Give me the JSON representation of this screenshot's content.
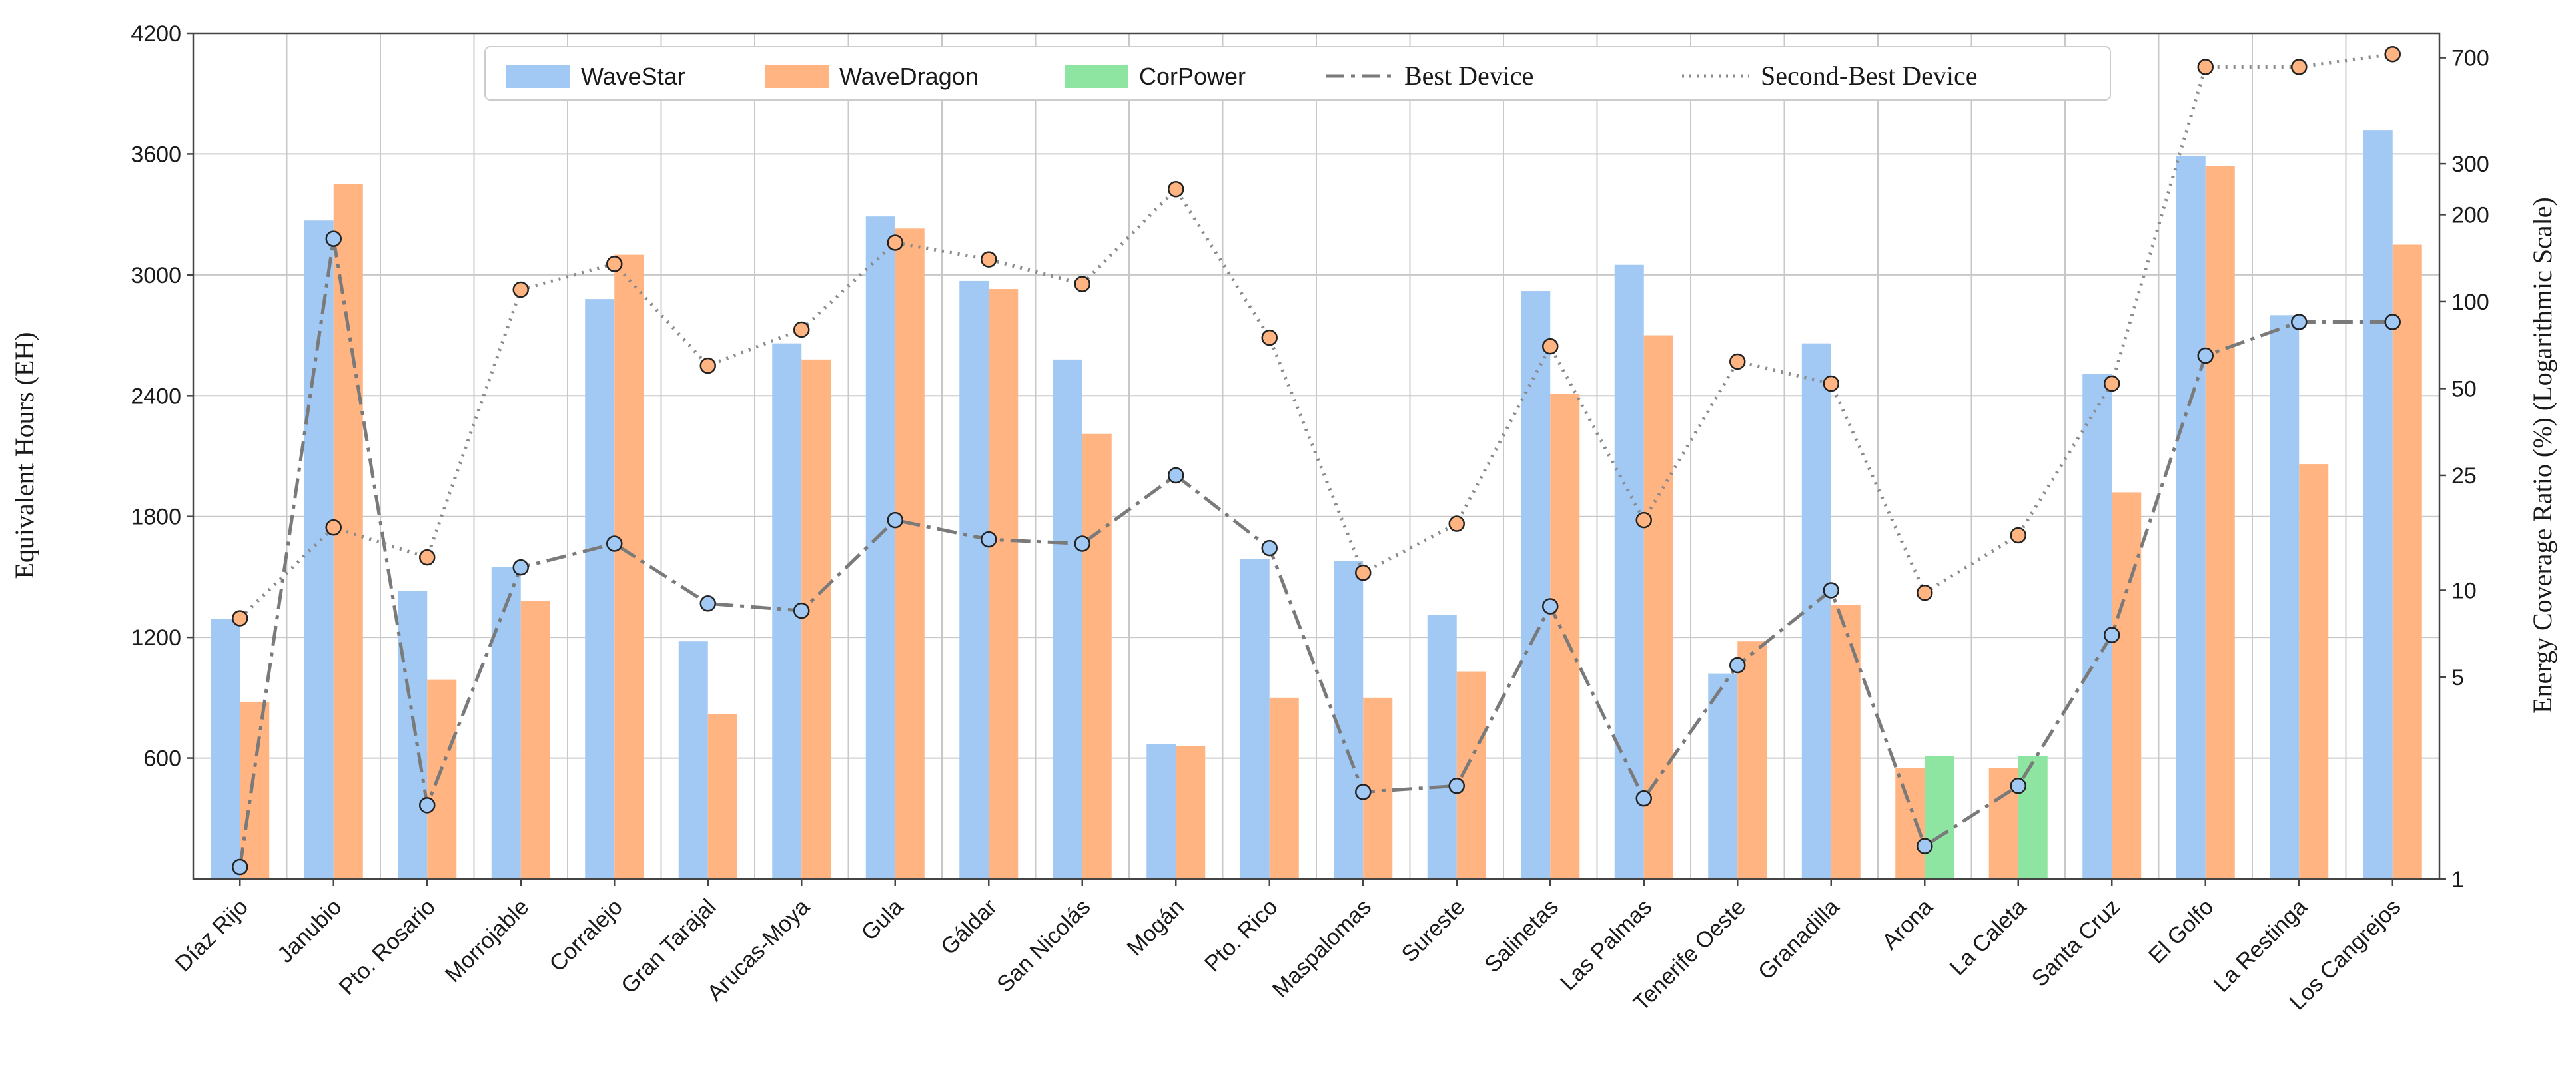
{
  "chart_data": {
    "type": "bar",
    "ylabel": "Equivalent Hours (EH)",
    "y2label": "Energy Coverage Ratio (%) (Logarithmic Scale)",
    "ylim": [
      0,
      4200
    ],
    "yticks": [
      600,
      1200,
      1800,
      2400,
      3000,
      3600,
      4200
    ],
    "y2lim": [
      1,
      850
    ],
    "y2scale": "log",
    "y2ticks": [
      1,
      5,
      10,
      25,
      50,
      100,
      200,
      300,
      700
    ],
    "grid": true,
    "legend_position": "top-center",
    "categories": [
      "Díaz Rijo",
      "Janubio",
      "Pto. Rosario",
      "Morrojable",
      "Corralejo",
      "Gran Tarajal",
      "Arucas-Moya",
      "Gula",
      "Gáldar",
      "San Nicolás",
      "Mogán",
      "Pto. Rico",
      "Maspalomas",
      "Sureste",
      "Salinetas",
      "Las Palmas",
      "Tenerife Oeste",
      "Granadilla",
      "Arona",
      "La Caleta",
      "Santa Cruz",
      "El Golfo",
      "La Restinga",
      "Los Cangrejos"
    ],
    "series": [
      {
        "name": "WaveStar",
        "kind": "bar",
        "color": "#a1c9f4",
        "values": [
          1290,
          3270,
          1430,
          1550,
          2880,
          1180,
          2660,
          3290,
          2970,
          2580,
          670,
          1590,
          1580,
          1310,
          2920,
          3050,
          1020,
          2660,
          0,
          0,
          2510,
          3590,
          2800,
          3720
        ]
      },
      {
        "name": "WaveDragon",
        "kind": "bar",
        "color": "#ffb482",
        "values": [
          880,
          3450,
          990,
          1380,
          3100,
          820,
          2580,
          3230,
          2930,
          2210,
          660,
          900,
          900,
          1030,
          2410,
          2700,
          1180,
          1360,
          550,
          550,
          1920,
          3540,
          2060,
          3150
        ]
      },
      {
        "name": "CorPower",
        "kind": "bar",
        "color": "#8de5a1",
        "values": [
          0,
          0,
          0,
          0,
          0,
          0,
          0,
          0,
          0,
          0,
          0,
          0,
          0,
          0,
          0,
          0,
          0,
          0,
          610,
          610,
          0,
          0,
          0,
          0
        ]
      },
      {
        "name": "Best Device",
        "kind": "line",
        "axis": "right",
        "color": "#7a7a7a",
        "marker": "#a1c9f4",
        "values": [
          1.1,
          165,
          1.8,
          12,
          14.5,
          9,
          8.5,
          17.5,
          15,
          14.5,
          25,
          14,
          2,
          2.1,
          8.8,
          1.9,
          5.5,
          10,
          1.3,
          2.1,
          7,
          65,
          85,
          85
        ]
      },
      {
        "name": "Second-Best Device",
        "kind": "line",
        "axis": "right",
        "color": "#8a8a8a",
        "marker": "#ffb482",
        "values": [
          8,
          16.5,
          13,
          110,
          135,
          60,
          80,
          160,
          140,
          115,
          245,
          75,
          11.5,
          17,
          70,
          17.5,
          62,
          52,
          9.8,
          15.5,
          52,
          650,
          650,
          720
        ]
      }
    ]
  }
}
